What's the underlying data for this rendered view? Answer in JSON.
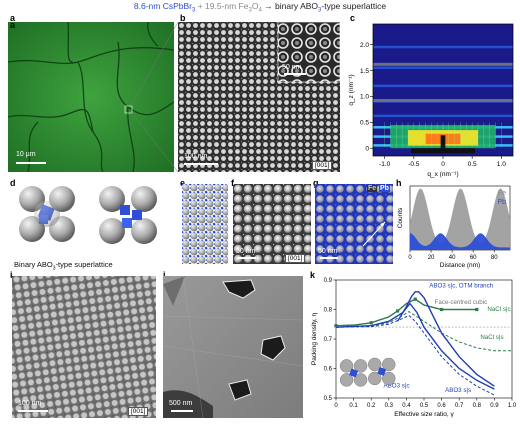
{
  "title": {
    "part1": "8.6-nm CsPbBr",
    "part1_sub": "3",
    "part2": " + 19.5-nm Fe",
    "part2_sub1": "3",
    "part2_mid": "O",
    "part2_sub2": "4",
    "arrow": " → ",
    "part3": "binary ABO",
    "part3_sub": "3",
    "part4": "-type superlattice"
  },
  "panels": {
    "a": {
      "label": "a",
      "scale": "10 µm"
    },
    "b": {
      "label": "b",
      "scale": "100 nm",
      "inset_scale": "50 nm",
      "tag": "[001]"
    },
    "c": {
      "label": "c"
    },
    "d": {
      "label": "d",
      "caption": "Binary ABO",
      "caption_sub": "3",
      "caption_tail": "-type superlattice"
    },
    "e": {
      "label": "e"
    },
    "f": {
      "label": "f",
      "scale": "50 nm",
      "tag": "[001]"
    },
    "g": {
      "label": "g",
      "scale": "50 nm",
      "legend_fe": "Fe",
      "legend_pb": "Pb"
    },
    "h": {
      "label": "h"
    },
    "i": {
      "label": "i",
      "scale": "100 nm",
      "tag": "[001]"
    },
    "j": {
      "label": "j",
      "scale": "500 nm"
    },
    "k": {
      "label": "k"
    }
  },
  "colors": {
    "green_micrograph": "#2f8a2f",
    "blue_accent": "#2c4fd6",
    "sphere_gray": "#9e9e9e",
    "curve_green": "#2f7a4a",
    "curve_blue": "#1f3fb8",
    "curve_black": "#555555"
  },
  "chart_data": [
    {
      "type": "heatmap",
      "panel": "c",
      "xlabel": "q_x (nm⁻¹)",
      "ylabel": "q_z (nm⁻¹)",
      "xlim": [
        -1.2,
        1.2
      ],
      "ylim": [
        -0.15,
        2.4
      ],
      "xticks": [
        "-1.0",
        "-0.5",
        "0",
        "0.5",
        "1.0"
      ],
      "yticks": [
        "0",
        "0.5",
        "1.0",
        "1.5",
        "2.0"
      ]
    },
    {
      "type": "area",
      "panel": "h",
      "xlabel": "Distance (nm)",
      "ylabel": "Counts",
      "xticks": [
        "0",
        "20",
        "40",
        "60",
        "80"
      ],
      "xlim": [
        0,
        95
      ],
      "series": [
        {
          "name": "Fe",
          "peaks": [
            10,
            48,
            86
          ],
          "color": "#9e9e9e"
        },
        {
          "name": "Pb",
          "peaks": [
            0,
            29,
            67
          ],
          "color": "#2c4fd6"
        }
      ]
    },
    {
      "type": "line",
      "panel": "k",
      "xlabel": "Effective size ratio, γ",
      "ylabel": "Packing density, η",
      "xlim": [
        0,
        1.0
      ],
      "ylim": [
        0.5,
        0.9
      ],
      "xticks": [
        "0",
        "0.1",
        "0.2",
        "0.3",
        "0.4",
        "0.5",
        "0.6",
        "0.7",
        "0.8",
        "0.9",
        "1.0"
      ],
      "yticks": [
        "0.5",
        "0.6",
        "0.7",
        "0.8",
        "0.9"
      ],
      "annotations": [
        "ABO3 s|c, OTM branch",
        "Face-centred cubic",
        "NaCl s|c",
        "NaCl s|s",
        "ABO3 s|c",
        "ABO3 s|s"
      ],
      "fcc_level": 0.7405,
      "series": [
        {
          "name": "NaCl s|c",
          "style": "solid",
          "color": "#2f7a4a",
          "x": [
            0,
            0.1,
            0.2,
            0.3,
            0.35,
            0.4,
            0.45,
            0.5,
            0.6,
            0.7,
            0.8
          ],
          "y": [
            0.745,
            0.747,
            0.755,
            0.775,
            0.795,
            0.82,
            0.835,
            0.815,
            0.8,
            0.8,
            0.8
          ]
        },
        {
          "name": "NaCl s|s",
          "style": "dashed",
          "color": "#2f7a4a",
          "x": [
            0,
            0.2,
            0.3,
            0.38,
            0.414,
            0.5,
            0.6,
            0.7,
            0.8,
            0.9,
            1.0
          ],
          "y": [
            0.74,
            0.745,
            0.755,
            0.78,
            0.793,
            0.76,
            0.72,
            0.69,
            0.67,
            0.66,
            0.66
          ]
        },
        {
          "name": "ABO3 s|c, OTM branch",
          "style": "solid",
          "color": "#1f3fb8",
          "x": [
            0.35,
            0.4,
            0.43,
            0.45,
            0.47,
            0.5,
            0.55,
            0.6,
            0.7,
            0.8,
            0.9
          ],
          "y": [
            0.76,
            0.81,
            0.845,
            0.86,
            0.86,
            0.84,
            0.78,
            0.72,
            0.64,
            0.58,
            0.54
          ]
        },
        {
          "name": "ABO3 s|c",
          "style": "solid",
          "color": "#1f3fb8",
          "x": [
            0.0,
            0.2,
            0.3,
            0.38,
            0.42,
            0.46,
            0.5,
            0.6,
            0.7,
            0.8,
            0.9
          ],
          "y": [
            0.74,
            0.745,
            0.76,
            0.79,
            0.82,
            0.79,
            0.74,
            0.66,
            0.6,
            0.56,
            0.53
          ]
        },
        {
          "name": "ABO3 s|s",
          "style": "dashed",
          "color": "#1f3fb8",
          "x": [
            0.0,
            0.2,
            0.3,
            0.38,
            0.414,
            0.45,
            0.5,
            0.6,
            0.7,
            0.8,
            0.9
          ],
          "y": [
            0.74,
            0.742,
            0.75,
            0.77,
            0.78,
            0.76,
            0.72,
            0.64,
            0.58,
            0.54,
            0.51
          ]
        }
      ]
    }
  ]
}
